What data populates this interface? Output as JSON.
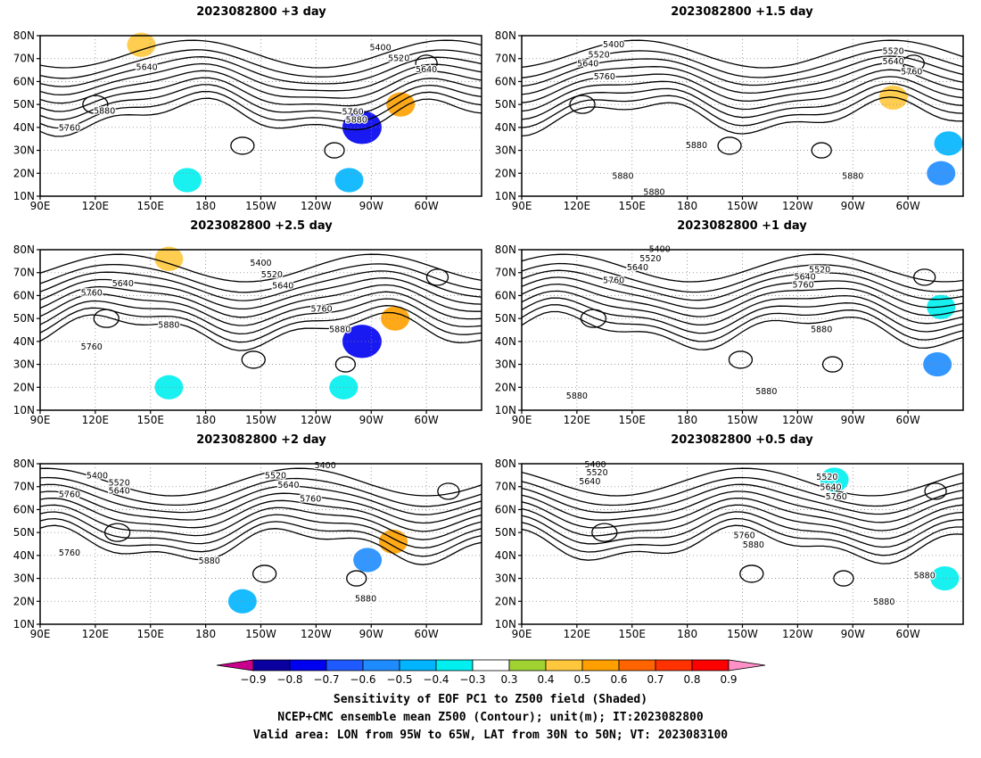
{
  "panels": [
    {
      "title": "2023082800  +3 day",
      "contour_labels": [
        {
          "text": "5400",
          "lon": 275,
          "lat": 73.5
        },
        {
          "text": "5520",
          "lon": 285,
          "lat": 69
        },
        {
          "text": "5640",
          "lon": 148,
          "lat": 65
        },
        {
          "text": "5640",
          "lon": 300,
          "lat": 64
        },
        {
          "text": "5880",
          "lon": 125,
          "lat": 46
        },
        {
          "text": "5760",
          "lon": 106,
          "lat": 38.5
        },
        {
          "text": "5760",
          "lon": 260,
          "lat": 45.5
        },
        {
          "text": "5880",
          "lon": 262,
          "lat": 42
        }
      ]
    },
    {
      "title": "2023082800  +1.5 day",
      "contour_labels": [
        {
          "text": "5400",
          "lon": 140,
          "lat": 75
        },
        {
          "text": "5520",
          "lon": 132,
          "lat": 70.5
        },
        {
          "text": "5640",
          "lon": 126,
          "lat": 66.5
        },
        {
          "text": "5760",
          "lon": 135,
          "lat": 61
        },
        {
          "text": "5520",
          "lon": 292,
          "lat": 72
        },
        {
          "text": "5640",
          "lon": 292,
          "lat": 67.5
        },
        {
          "text": "5760",
          "lon": 302,
          "lat": 63
        },
        {
          "text": "5880",
          "lon": 185,
          "lat": 31
        },
        {
          "text": "5880",
          "lon": 145,
          "lat": 17.5
        },
        {
          "text": "5880",
          "lon": 270,
          "lat": 17.5
        },
        {
          "text": "5880",
          "lon": 162,
          "lat": 10.5
        }
      ]
    },
    {
      "title": "2023082800  +2.5 day",
      "contour_labels": [
        {
          "text": "5400",
          "lon": 210,
          "lat": 73
        },
        {
          "text": "5520",
          "lon": 216,
          "lat": 68
        },
        {
          "text": "5640",
          "lon": 222,
          "lat": 63
        },
        {
          "text": "5640",
          "lon": 135,
          "lat": 64
        },
        {
          "text": "5760",
          "lon": 118,
          "lat": 60
        },
        {
          "text": "5760",
          "lon": 243,
          "lat": 53
        },
        {
          "text": "5880",
          "lon": 160,
          "lat": 46
        },
        {
          "text": "5760",
          "lon": 118,
          "lat": 36.5
        },
        {
          "text": "5880",
          "lon": 253,
          "lat": 44
        }
      ]
    },
    {
      "title": "2023082800  +1 day",
      "contour_labels": [
        {
          "text": "5400",
          "lon": 165,
          "lat": 79
        },
        {
          "text": "5520",
          "lon": 160,
          "lat": 75
        },
        {
          "text": "5640",
          "lon": 153,
          "lat": 71
        },
        {
          "text": "5760",
          "lon": 140,
          "lat": 65.5
        },
        {
          "text": "5520",
          "lon": 252,
          "lat": 70
        },
        {
          "text": "5640",
          "lon": 244,
          "lat": 67
        },
        {
          "text": "5760",
          "lon": 243,
          "lat": 63.5
        },
        {
          "text": "5880",
          "lon": 253,
          "lat": 44
        },
        {
          "text": "5880",
          "lon": 223,
          "lat": 17
        },
        {
          "text": "5880",
          "lon": 120,
          "lat": 15
        }
      ]
    },
    {
      "title": "2023082800  +2 day",
      "contour_labels": [
        {
          "text": "5400",
          "lon": 121,
          "lat": 73.5
        },
        {
          "text": "5520",
          "lon": 133,
          "lat": 70.5
        },
        {
          "text": "5640",
          "lon": 133,
          "lat": 67
        },
        {
          "text": "5760",
          "lon": 106,
          "lat": 65.5
        },
        {
          "text": "5400",
          "lon": 245,
          "lat": 78
        },
        {
          "text": "5520",
          "lon": 218,
          "lat": 73.5
        },
        {
          "text": "5640",
          "lon": 225,
          "lat": 69.5
        },
        {
          "text": "5760",
          "lon": 237,
          "lat": 63.5
        },
        {
          "text": "5760",
          "lon": 106,
          "lat": 40
        },
        {
          "text": "5880",
          "lon": 182,
          "lat": 36.5
        },
        {
          "text": "5880",
          "lon": 267,
          "lat": 20
        }
      ]
    },
    {
      "title": "2023082800  +0.5 day",
      "contour_labels": [
        {
          "text": "5400",
          "lon": 130,
          "lat": 78.5
        },
        {
          "text": "5520",
          "lon": 131,
          "lat": 75
        },
        {
          "text": "5640",
          "lon": 127,
          "lat": 71
        },
        {
          "text": "5520",
          "lon": 256,
          "lat": 73
        },
        {
          "text": "5640",
          "lon": 258,
          "lat": 68.5
        },
        {
          "text": "5760",
          "lon": 261,
          "lat": 64.5
        },
        {
          "text": "5760",
          "lon": 211,
          "lat": 47.5
        },
        {
          "text": "5880",
          "lon": 216,
          "lat": 43.5
        },
        {
          "text": "5880",
          "lon": 309,
          "lat": 30
        },
        {
          "text": "5880",
          "lon": 287,
          "lat": 18.5
        }
      ]
    }
  ],
  "axes": {
    "lat_labels": [
      "10N",
      "20N",
      "30N",
      "40N",
      "50N",
      "60N",
      "70N",
      "80N"
    ],
    "lat_values": [
      10,
      20,
      30,
      40,
      50,
      60,
      70,
      80
    ],
    "lon_labels": [
      "90E",
      "120E",
      "150E",
      "180",
      "150W",
      "120W",
      "90W",
      "60W"
    ],
    "lon_values": [
      90,
      120,
      150,
      180,
      210,
      240,
      270,
      300
    ],
    "lon_range": [
      90,
      330
    ],
    "lat_range": [
      10,
      80
    ]
  },
  "shading_blobs": [
    {
      "panel": 0,
      "lon": 265,
      "lat": 40,
      "value": -0.8
    },
    {
      "panel": 0,
      "lon": 286,
      "lat": 50,
      "value": 0.5
    },
    {
      "panel": 0,
      "lon": 145,
      "lat": 76,
      "value": 0.4
    },
    {
      "panel": 0,
      "lon": 258,
      "lat": 17,
      "value": -0.5
    },
    {
      "panel": 0,
      "lon": 170,
      "lat": 17,
      "value": -0.4
    },
    {
      "panel": 1,
      "lon": 322,
      "lat": 33,
      "value": -0.5
    },
    {
      "panel": 1,
      "lon": 292,
      "lat": 53,
      "value": 0.4
    },
    {
      "panel": 1,
      "lon": 318,
      "lat": 20,
      "value": -0.6
    },
    {
      "panel": 2,
      "lon": 265,
      "lat": 40,
      "value": -0.8
    },
    {
      "panel": 2,
      "lon": 283,
      "lat": 50,
      "value": 0.5
    },
    {
      "panel": 2,
      "lon": 160,
      "lat": 76,
      "value": 0.4
    },
    {
      "panel": 2,
      "lon": 255,
      "lat": 20,
      "value": -0.4
    },
    {
      "panel": 2,
      "lon": 160,
      "lat": 20,
      "value": -0.4
    },
    {
      "panel": 3,
      "lon": 316,
      "lat": 30,
      "value": -0.6
    },
    {
      "panel": 3,
      "lon": 318,
      "lat": 55,
      "value": -0.4
    },
    {
      "panel": 4,
      "lon": 282,
      "lat": 46,
      "value": 0.5
    },
    {
      "panel": 4,
      "lon": 268,
      "lat": 38,
      "value": -0.6
    },
    {
      "panel": 4,
      "lon": 200,
      "lat": 20,
      "value": -0.5
    },
    {
      "panel": 5,
      "lon": 260,
      "lat": 73,
      "value": -0.4
    },
    {
      "panel": 5,
      "lon": 320,
      "lat": 30,
      "value": -0.4
    }
  ],
  "colorbar": {
    "labels": [
      "−0.9",
      "−0.8",
      "−0.7",
      "−0.6",
      "−0.5",
      "−0.4",
      "−0.3",
      "0.3",
      "0.4",
      "0.5",
      "0.6",
      "0.7",
      "0.8",
      "0.9"
    ],
    "colors": [
      "#c8008c",
      "#0a00a0",
      "#0000f0",
      "#1e5aff",
      "#1e8cff",
      "#00b4ff",
      "#00f0f0",
      "#ffffff",
      "#a0d232",
      "#ffc83c",
      "#ffa000",
      "#ff6400",
      "#ff3200",
      "#ff0000",
      "#ff90c8"
    ]
  },
  "captions": [
    "Sensitivity of EOF PC1 to Z500 field (Shaded)",
    "NCEP+CMC ensemble mean Z500 (Contour); unit(m); IT:2023082800",
    "Valid area: LON from 95W to 65W, LAT from 30N to 50N; VT: 2023083100"
  ]
}
